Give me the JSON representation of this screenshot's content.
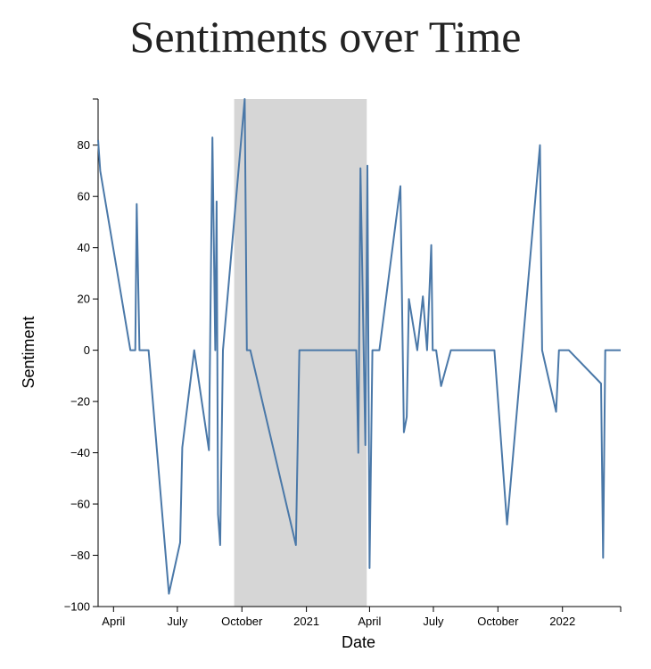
{
  "chart_data": {
    "type": "line",
    "title": "Sentiments over Time",
    "xlabel": "Date",
    "ylabel": "Sentiment",
    "ylim": [
      -100,
      98
    ],
    "xlim": [
      "2020-03-10",
      "2022-03-25"
    ],
    "yticks": [
      -100,
      -80,
      -60,
      -40,
      -20,
      0,
      20,
      40,
      60,
      80
    ],
    "xticks": [
      {
        "date": "2020-04-01",
        "label": "April"
      },
      {
        "date": "2020-07-01",
        "label": "July"
      },
      {
        "date": "2020-10-01",
        "label": "October"
      },
      {
        "date": "2021-01-01",
        "label": "2021"
      },
      {
        "date": "2021-04-01",
        "label": "April"
      },
      {
        "date": "2021-07-01",
        "label": "July"
      },
      {
        "date": "2021-10-01",
        "label": "October"
      },
      {
        "date": "2022-01-01",
        "label": "2022"
      }
    ],
    "line_color": "#4a78a8",
    "highlight": {
      "start": "2020-09-20",
      "end": "2021-03-28",
      "color": "#d6d6d6"
    },
    "series": [
      {
        "points": [
          [
            "2020-03-10",
            82
          ],
          [
            "2020-03-13",
            70
          ],
          [
            "2020-04-25",
            0
          ],
          [
            "2020-05-02",
            0
          ],
          [
            "2020-05-04",
            57
          ],
          [
            "2020-05-08",
            0
          ],
          [
            "2020-05-21",
            0
          ],
          [
            "2020-06-19",
            -95
          ],
          [
            "2020-07-05",
            -75
          ],
          [
            "2020-07-08",
            -38
          ],
          [
            "2020-07-25",
            0
          ],
          [
            "2020-08-15",
            -39
          ],
          [
            "2020-08-20",
            83
          ],
          [
            "2020-08-24",
            0
          ],
          [
            "2020-08-26",
            58
          ],
          [
            "2020-08-28",
            -64
          ],
          [
            "2020-08-31",
            -76
          ],
          [
            "2020-09-04",
            0
          ],
          [
            "2020-10-05",
            98
          ],
          [
            "2020-10-08",
            0
          ],
          [
            "2020-10-13",
            0
          ],
          [
            "2020-12-17",
            -76
          ],
          [
            "2020-12-22",
            0
          ],
          [
            "2021-03-13",
            0
          ],
          [
            "2021-03-16",
            -40
          ],
          [
            "2021-03-19",
            71
          ],
          [
            "2021-03-26",
            -37
          ],
          [
            "2021-03-29",
            72
          ],
          [
            "2021-04-01",
            -85
          ],
          [
            "2021-04-05",
            0
          ],
          [
            "2021-04-15",
            0
          ],
          [
            "2021-05-15",
            64
          ],
          [
            "2021-05-20",
            -32
          ],
          [
            "2021-05-24",
            -26
          ],
          [
            "2021-05-27",
            20
          ],
          [
            "2021-06-08",
            0
          ],
          [
            "2021-06-16",
            21
          ],
          [
            "2021-06-22",
            0
          ],
          [
            "2021-06-28",
            41
          ],
          [
            "2021-06-30",
            0
          ],
          [
            "2021-07-05",
            0
          ],
          [
            "2021-07-12",
            -14
          ],
          [
            "2021-07-26",
            0
          ],
          [
            "2021-09-26",
            0
          ],
          [
            "2021-10-14",
            -68
          ],
          [
            "2021-11-30",
            80
          ],
          [
            "2021-12-03",
            0
          ],
          [
            "2021-12-23",
            -24
          ],
          [
            "2021-12-27",
            0
          ],
          [
            "2022-01-10",
            0
          ],
          [
            "2022-02-25",
            -13
          ],
          [
            "2022-02-28",
            -81
          ],
          [
            "2022-03-03",
            0
          ],
          [
            "2022-03-25",
            0
          ]
        ]
      }
    ]
  }
}
